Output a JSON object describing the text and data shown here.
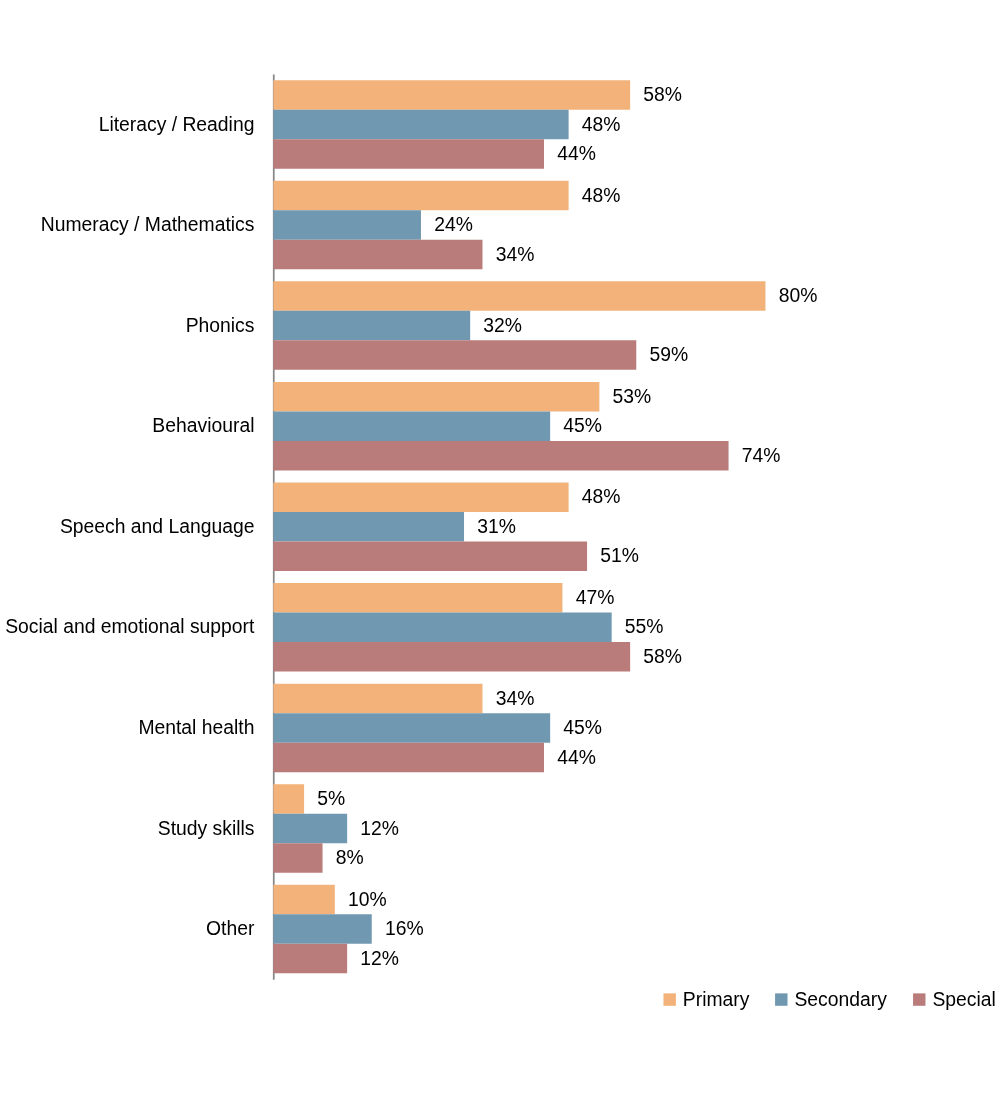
{
  "chart_data": {
    "type": "bar",
    "orientation": "horizontal",
    "legend": "bottom right",
    "categories": [
      "Literacy / Reading",
      "Numeracy / Mathematics",
      "Phonics",
      "Behavioural",
      "Speech and Language",
      "Social and emotional support",
      "Mental health",
      "Study skills",
      "Other"
    ],
    "series": [
      {
        "name": "Primary",
        "color": "#f2b27a",
        "values": [
          58,
          48,
          80,
          53,
          48,
          47,
          34,
          5,
          10
        ],
        "value_labels": [
          "58%",
          "48%",
          "80%",
          "53%",
          "48%",
          "47%",
          "34%",
          "5%",
          "10%"
        ]
      },
      {
        "name": "Secondary",
        "color": "#7098b0",
        "values": [
          48,
          24,
          32,
          45,
          31,
          55,
          45,
          12,
          16
        ],
        "value_labels": [
          "48%",
          "24%",
          "32%",
          "45%",
          "31%",
          "55%",
          "45%",
          "12%",
          "16%"
        ]
      },
      {
        "name": "Special",
        "color": "#b97c7b",
        "values": [
          44,
          34,
          59,
          74,
          51,
          58,
          44,
          8,
          12
        ],
        "value_labels": [
          "44%",
          "34%",
          "59%",
          "74%",
          "51%",
          "58%",
          "44%",
          "8%",
          "12%"
        ]
      }
    ]
  }
}
